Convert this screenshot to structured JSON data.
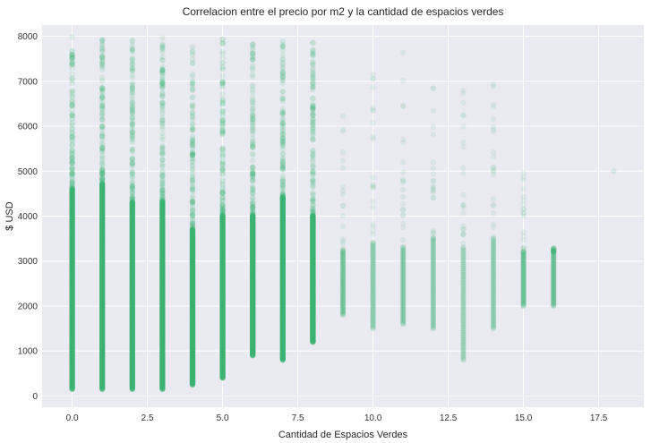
{
  "chart_data": {
    "type": "scatter",
    "title": "Correlacion entre el precio por m2 y la cantidad de espacios verdes",
    "xlabel": "Cantidad de Espacios Verdes",
    "ylabel": "$ USD",
    "xlim": [
      -1.0,
      19.0
    ],
    "ylim": [
      -250,
      8250
    ],
    "xticks": [
      0.0,
      2.5,
      5.0,
      7.5,
      10.0,
      12.5,
      15.0,
      17.5
    ],
    "xtick_labels": [
      "0.0",
      "2.5",
      "5.0",
      "7.5",
      "10.0",
      "12.5",
      "15.0",
      "17.5"
    ],
    "yticks": [
      0,
      1000,
      2000,
      3000,
      4000,
      5000,
      6000,
      7000,
      8000
    ],
    "ytick_labels": [
      "0",
      "1000",
      "2000",
      "3000",
      "4000",
      "5000",
      "6000",
      "7000",
      "8000"
    ],
    "grid": true,
    "point_color": "#3cb371",
    "point_alpha": 0.12,
    "series_by_x": [
      {
        "x": 0,
        "dense_range": [
          150,
          4600
        ],
        "sparse_range": [
          4600,
          8000
        ]
      },
      {
        "x": 1,
        "dense_range": [
          150,
          4700
        ],
        "sparse_range": [
          4700,
          7950
        ]
      },
      {
        "x": 2,
        "dense_range": [
          150,
          4300
        ],
        "sparse_range": [
          4300,
          7950
        ]
      },
      {
        "x": 3,
        "dense_range": [
          150,
          4300
        ],
        "sparse_range": [
          4300,
          8000
        ]
      },
      {
        "x": 4,
        "dense_range": [
          250,
          3700
        ],
        "sparse_range": [
          3700,
          7800
        ]
      },
      {
        "x": 5,
        "dense_range": [
          400,
          4000
        ],
        "sparse_range": [
          4000,
          7950
        ]
      },
      {
        "x": 6,
        "dense_range": [
          900,
          4000
        ],
        "sparse_range": [
          4000,
          8000
        ]
      },
      {
        "x": 7,
        "dense_range": [
          800,
          4400
        ],
        "sparse_range": [
          4400,
          8000
        ]
      },
      {
        "x": 8,
        "dense_range": [
          1200,
          4000
        ],
        "sparse_range": [
          4000,
          7950
        ]
      },
      {
        "x": 9,
        "dense_range": [
          1800,
          3200
        ],
        "sparse_range": [
          3200,
          6800
        ]
      },
      {
        "x": 10,
        "dense_range": [
          1500,
          3400
        ],
        "sparse_range": [
          3400,
          7200
        ]
      },
      {
        "x": 11,
        "dense_range": [
          1600,
          3300
        ],
        "sparse_range": [
          3300,
          7800
        ]
      },
      {
        "x": 12,
        "dense_range": [
          1500,
          3500
        ],
        "sparse_range": [
          3500,
          7400
        ]
      },
      {
        "x": 13,
        "dense_range": [
          800,
          3300
        ],
        "sparse_range": [
          3300,
          6900
        ]
      },
      {
        "x": 14,
        "dense_range": [
          1500,
          3500
        ],
        "sparse_range": [
          3500,
          7000
        ]
      },
      {
        "x": 15,
        "dense_range": [
          2000,
          3200
        ],
        "sparse_range": [
          3200,
          5400
        ]
      },
      {
        "x": 16,
        "dense_range": [
          2000,
          3200
        ],
        "sparse_range": [
          3200,
          3300
        ]
      },
      {
        "x": 18,
        "dense_range": [
          5000,
          5000
        ],
        "sparse_range": [
          5000,
          5000
        ]
      }
    ]
  }
}
